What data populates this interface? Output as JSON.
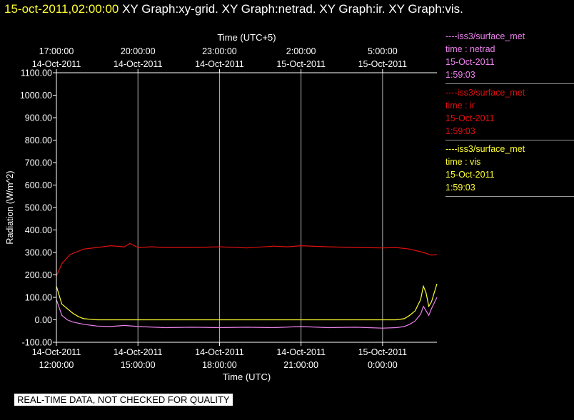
{
  "header": {
    "timestamp": "15-oct-2011,02:00:00",
    "graphs": " XY Graph:xy-grid.  XY Graph:netrad.  XY Graph:ir.  XY Graph:vis."
  },
  "footer": {
    "notice": "REAL-TIME DATA, NOT CHECKED FOR QUALITY"
  },
  "colors": {
    "netrad": "#ee82ee",
    "ir": "#e01010",
    "vis": "#ffff33",
    "grid": "#b0b0b0",
    "axis": "#ffffff"
  },
  "legend": [
    {
      "station": "----iss3/surface_met",
      "var": "time : netrad",
      "date": "15-Oct-2011",
      "time": "1:59:03",
      "color": "#ee82ee"
    },
    {
      "station": "----iss3/surface_met",
      "var": "time : ir",
      "date": "15-Oct-2011",
      "time": "1:59:03",
      "color": "#e01010"
    },
    {
      "station": "----iss3/surface_met",
      "var": "time : vis",
      "date": "15-Oct-2011",
      "time": "1:59:03",
      "color": "#ffff33"
    }
  ],
  "chart_data": {
    "type": "line",
    "ylabel": "Radiation (W/m^2)",
    "xlabel_bottom": "Time (UTC)",
    "xlabel_top": "Time (UTC+5)",
    "ylim": [
      -100,
      1100
    ],
    "yticks": [
      -100,
      0,
      100,
      200,
      300,
      400,
      500,
      600,
      700,
      800,
      900,
      1000,
      1100
    ],
    "ytick_labels": [
      "-100.00",
      "0.00",
      "100.00",
      "200.00",
      "300.00",
      "400.00",
      "500.00",
      "600.00",
      "700.00",
      "800.00",
      "900.00",
      "1000.00",
      "1100.00"
    ],
    "xlim": [
      0,
      14
    ],
    "x_unit": "hours since 14-Oct-2011 12:00:00 UTC",
    "xticks_bottom": [
      {
        "x": 0,
        "date": "14-Oct-2011",
        "time": "12:00:00"
      },
      {
        "x": 3,
        "date": "14-Oct-2011",
        "time": "15:00:00"
      },
      {
        "x": 6,
        "date": "14-Oct-2011",
        "time": "18:00:00"
      },
      {
        "x": 9,
        "date": "14-Oct-2011",
        "time": "21:00:00"
      },
      {
        "x": 12,
        "date": "15-Oct-2011",
        "time": "0:00:00"
      }
    ],
    "xticks_top": [
      {
        "x": 0,
        "time": "17:00:00",
        "date": "14-Oct-2011"
      },
      {
        "x": 3,
        "time": "20:00:00",
        "date": "14-Oct-2011"
      },
      {
        "x": 6,
        "time": "23:00:00",
        "date": "14-Oct-2011"
      },
      {
        "x": 9,
        "time": "2:00:00",
        "date": "15-Oct-2011"
      },
      {
        "x": 12,
        "time": "5:00:00",
        "date": "15-Oct-2011"
      }
    ],
    "grid": true,
    "series": [
      {
        "name": "ir",
        "color": "#e01010",
        "x": [
          0,
          0.2,
          0.5,
          1,
          1.5,
          2,
          2.5,
          2.7,
          3,
          3.5,
          4,
          5,
          6,
          7,
          8,
          8.5,
          9,
          10,
          11,
          12,
          12.5,
          13,
          13.5,
          13.8,
          14
        ],
        "y": [
          195,
          250,
          290,
          315,
          322,
          330,
          325,
          340,
          322,
          325,
          322,
          322,
          325,
          320,
          328,
          325,
          330,
          325,
          322,
          320,
          322,
          315,
          300,
          288,
          290
        ]
      },
      {
        "name": "vis",
        "color": "#ffff33",
        "x": [
          0,
          0.2,
          0.4,
          0.6,
          0.8,
          1,
          1.5,
          2,
          3,
          6,
          9,
          11,
          12,
          12.5,
          12.8,
          13,
          13.2,
          13.4,
          13.5,
          13.6,
          13.7,
          13.8,
          14
        ],
        "y": [
          150,
          70,
          50,
          30,
          15,
          5,
          0,
          0,
          0,
          0,
          0,
          0,
          0,
          0,
          5,
          20,
          40,
          90,
          150,
          120,
          60,
          80,
          160
        ]
      },
      {
        "name": "netrad",
        "color": "#ee82ee",
        "x": [
          0,
          0.2,
          0.4,
          0.6,
          1,
          1.5,
          2,
          2.5,
          3,
          4,
          5,
          6,
          7,
          8,
          9,
          10,
          11,
          12,
          12.5,
          12.8,
          13,
          13.2,
          13.4,
          13.5,
          13.6,
          13.7,
          13.8,
          14
        ],
        "y": [
          90,
          20,
          0,
          -10,
          -20,
          -28,
          -30,
          -25,
          -30,
          -35,
          -33,
          -35,
          -33,
          -35,
          -30,
          -35,
          -33,
          -37,
          -35,
          -30,
          -20,
          -5,
          25,
          60,
          40,
          20,
          50,
          100
        ]
      }
    ]
  }
}
